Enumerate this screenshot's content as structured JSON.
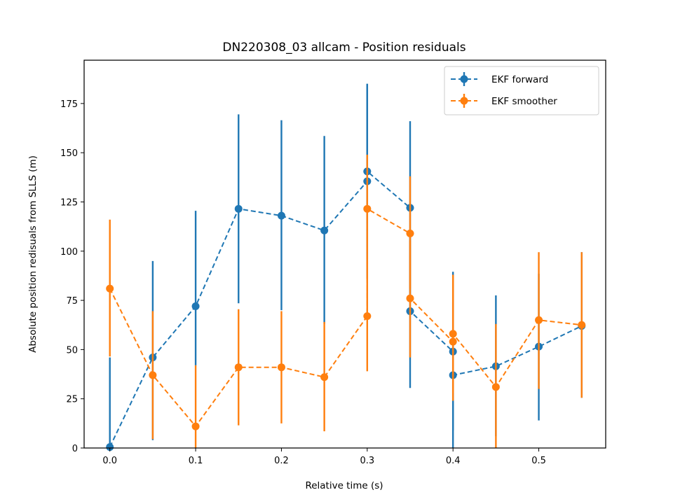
{
  "chart_data": {
    "type": "line",
    "title": "DN220308_03 allcam - Position residuals",
    "xlabel": "Relative time (s)",
    "ylabel": "Absolute position redisuals from SLLS (m)",
    "xlim": [
      -0.03,
      0.578
    ],
    "ylim": [
      0,
      197
    ],
    "xticks": [
      0.0,
      0.1,
      0.2,
      0.3,
      0.4,
      0.5
    ],
    "xtick_labels": [
      "0.0",
      "0.1",
      "0.2",
      "0.3",
      "0.4",
      "0.5"
    ],
    "yticks": [
      0,
      25,
      50,
      75,
      100,
      125,
      150,
      175
    ],
    "ytick_labels": [
      "0",
      "25",
      "50",
      "75",
      "100",
      "125",
      "150",
      "175"
    ],
    "grid": false,
    "legend_position": "upper right",
    "series": [
      {
        "name": "EKF forward",
        "color": "#1f77b4",
        "linestyle": "dashed",
        "marker": "circle",
        "x": [
          0.0,
          0.05,
          0.1,
          0.15,
          0.2,
          0.25,
          0.3,
          0.3,
          0.35,
          0.35,
          0.4,
          0.4,
          0.45,
          0.5,
          0.55
        ],
        "y": [
          0.5,
          46,
          72,
          121.5,
          118,
          110.5,
          135.5,
          140.5,
          122,
          69.5,
          49,
          37,
          41.5,
          51.5,
          62
        ],
        "err_low": [
          0,
          4,
          42,
          73.5,
          70,
          63,
          86,
          96,
          78,
          30.5,
          9,
          0,
          6,
          14,
          25.5
        ],
        "err_high": [
          46,
          95,
          120.5,
          169.5,
          166.5,
          158.5,
          185,
          185,
          166,
          108.5,
          89.5,
          74,
          77.5,
          88.5,
          99.5
        ]
      },
      {
        "name": "EKF smoother",
        "color": "#ff7f0e",
        "linestyle": "dashed",
        "marker": "circle",
        "x": [
          0.0,
          0.05,
          0.1,
          0.15,
          0.2,
          0.25,
          0.3,
          0.3,
          0.35,
          0.35,
          0.4,
          0.4,
          0.45,
          0.5,
          0.55
        ],
        "y": [
          81,
          37,
          11,
          41,
          41,
          36,
          67,
          121.5,
          109,
          76,
          54,
          58,
          31,
          65,
          62.5
        ],
        "err_low": [
          46.5,
          4.5,
          0,
          11.5,
          12.5,
          8.5,
          39,
          93.5,
          81,
          46,
          24,
          28,
          0,
          30,
          25.5
        ],
        "err_high": [
          116,
          69.5,
          42,
          70.5,
          69.5,
          64,
          95,
          149,
          138,
          105.5,
          87.5,
          88,
          63,
          99.5,
          99.5
        ]
      }
    ]
  }
}
